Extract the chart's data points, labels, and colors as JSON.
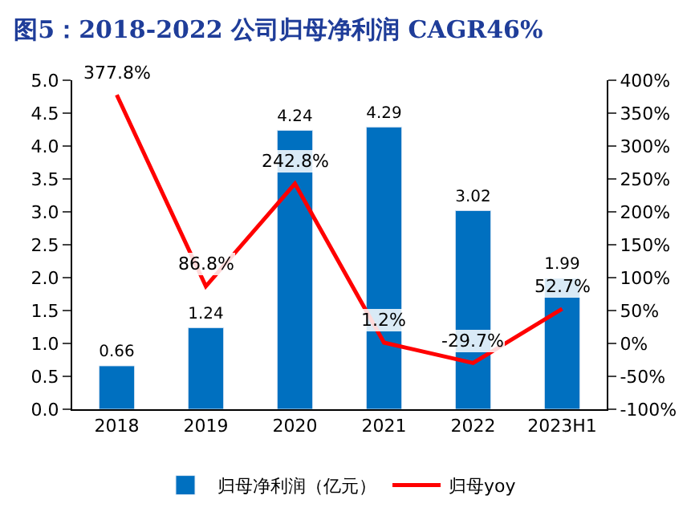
{
  "chart_data": {
    "type": "bar",
    "title": "图5：2018-2022 公司归母净利润 CAGR46%",
    "categories": [
      "2018",
      "2019",
      "2020",
      "2021",
      "2022",
      "2023H1"
    ],
    "series": [
      {
        "name": "归母净利润（亿元）",
        "color": "#0070c0",
        "values": [
          0.66,
          1.24,
          4.24,
          4.29,
          3.02,
          1.99
        ],
        "value_labels": [
          "0.66",
          "1.24",
          "4.24",
          "4.29",
          "3.02",
          "1.99"
        ]
      },
      {
        "name": "归母yoy",
        "type": "line",
        "axis": "y2",
        "color": "#ff0000",
        "values": [
          377.8,
          86.8,
          242.8,
          1.2,
          -29.7,
          52.7
        ],
        "value_labels": [
          "377.8%",
          "86.8%",
          "242.8%",
          "1.2%",
          "-29.7%",
          "52.7%"
        ]
      }
    ],
    "ylim": [
      0,
      5
    ],
    "yticks": [
      {
        "value": 0,
        "label": "0.0"
      },
      {
        "value": 0.5,
        "label": "0.5"
      },
      {
        "value": 1,
        "label": "1.0"
      },
      {
        "value": 1.5,
        "label": "1.5"
      },
      {
        "value": 2,
        "label": "2.0"
      },
      {
        "value": 2.5,
        "label": "2.5"
      },
      {
        "value": 3,
        "label": "3.0"
      },
      {
        "value": 3.5,
        "label": "3.5"
      },
      {
        "value": 4,
        "label": "4.0"
      },
      {
        "value": 4.5,
        "label": "4.5"
      },
      {
        "value": 5,
        "label": "5.0"
      }
    ],
    "y2lim": [
      -100,
      400
    ],
    "y2ticks": [
      {
        "value": -100,
        "label": "-100%"
      },
      {
        "value": -50,
        "label": "-50%"
      },
      {
        "value": 0,
        "label": "0%"
      },
      {
        "value": 50,
        "label": "50%"
      },
      {
        "value": 100,
        "label": "100%"
      },
      {
        "value": 150,
        "label": "150%"
      },
      {
        "value": 200,
        "label": "200%"
      },
      {
        "value": 250,
        "label": "250%"
      },
      {
        "value": 300,
        "label": "300%"
      },
      {
        "value": 350,
        "label": "350%"
      },
      {
        "value": 400,
        "label": "400%"
      }
    ],
    "legend": "bottom",
    "marker": "none",
    "line_style": "solid"
  }
}
